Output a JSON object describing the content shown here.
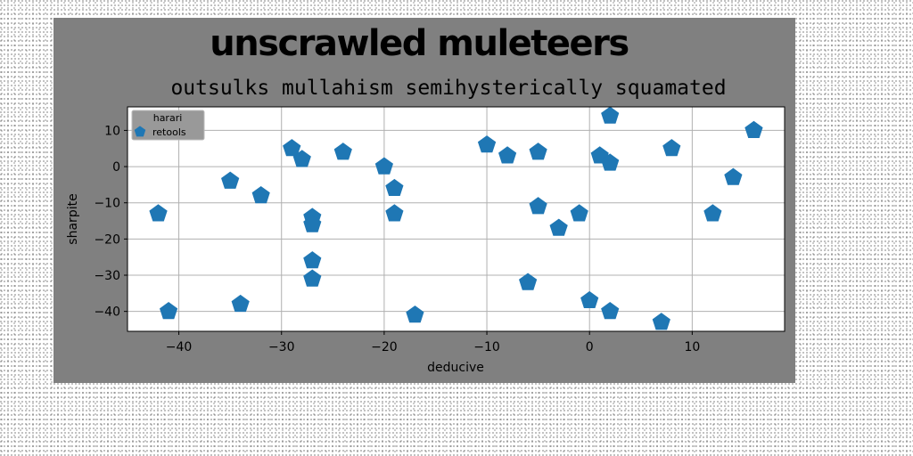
{
  "chart_data": {
    "type": "scatter",
    "suptitle": "unscrawled muleteers",
    "title": "outsulks mullahism semihysterically squamated",
    "xlabel": "deducive",
    "ylabel": "sharpite",
    "xlim": [
      -45,
      19
    ],
    "ylim": [
      -45.5,
      16.5
    ],
    "xticks": [
      -40,
      -30,
      -20,
      -10,
      0,
      10
    ],
    "yticks": [
      -40,
      -30,
      -20,
      -10,
      0,
      10
    ],
    "xtick_labels": [
      "−40",
      "−30",
      "−20",
      "−10",
      "0",
      "10"
    ],
    "ytick_labels": [
      "−40",
      "−30",
      "−20",
      "−10",
      "0",
      "10"
    ],
    "grid": true,
    "legend": {
      "title": "harari",
      "placement": "top-left"
    },
    "marker": "pentagon",
    "series": [
      {
        "name": "retools",
        "color": "#1f77b4",
        "x": [
          -42,
          -41,
          -35,
          -34,
          -32,
          -29,
          -28,
          -27,
          -27,
          -27,
          -27,
          -24,
          -20,
          -19,
          -19,
          -17,
          -10,
          -8,
          -6,
          -5,
          -5,
          -3,
          -1,
          0,
          1,
          2,
          2,
          2,
          7,
          8,
          12,
          14,
          16
        ],
        "y": [
          -13,
          -40,
          -4,
          -38,
          -8,
          5,
          2,
          -14,
          -16,
          -26,
          -31,
          4,
          0,
          -6,
          -13,
          -41,
          6,
          3,
          -32,
          4,
          -11,
          -17,
          -13,
          -37,
          3,
          1,
          14,
          -40,
          -43,
          5,
          -13,
          -3,
          10
        ]
      }
    ]
  }
}
